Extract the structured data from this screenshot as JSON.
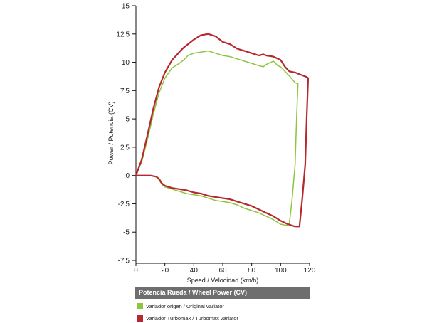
{
  "chart_data": {
    "type": "line",
    "title": "",
    "xlabel": "Speed / Velocidad (km/h)",
    "ylabel": "Power / Potencia (CV)",
    "xlim": [
      0,
      120
    ],
    "ylim": [
      -7.5,
      15
    ],
    "x_ticks": [
      "0",
      "20",
      "40",
      "60",
      "80",
      "100",
      "120"
    ],
    "y_ticks": [
      "15",
      "12'5",
      "10",
      "7'5",
      "5",
      "2'5",
      "0",
      "-2'5",
      "-5",
      "-7'5"
    ],
    "grid": false,
    "legend_title": "Potencia Rueda / Wheel Power (CV)",
    "series": [
      {
        "name": "Variador origen / Original variator",
        "color": "#8cc63f",
        "points": [
          [
            0,
            0
          ],
          [
            4,
            1.2
          ],
          [
            8,
            3.2
          ],
          [
            12,
            5.4
          ],
          [
            16,
            7.3
          ],
          [
            20,
            8.6
          ],
          [
            25,
            9.5
          ],
          [
            30,
            9.9
          ],
          [
            33,
            10.2
          ],
          [
            36,
            10.6
          ],
          [
            40,
            10.8
          ],
          [
            45,
            10.9
          ],
          [
            50,
            11.0
          ],
          [
            55,
            10.8
          ],
          [
            60,
            10.6
          ],
          [
            65,
            10.5
          ],
          [
            70,
            10.3
          ],
          [
            75,
            10.1
          ],
          [
            80,
            9.9
          ],
          [
            85,
            9.7
          ],
          [
            88,
            9.6
          ],
          [
            90,
            9.8
          ],
          [
            95,
            10.1
          ],
          [
            98,
            9.7
          ],
          [
            100,
            9.6
          ],
          [
            103,
            9.2
          ],
          [
            106,
            8.8
          ],
          [
            110,
            8.2
          ],
          [
            112,
            8.1
          ],
          [
            111,
            5
          ],
          [
            110,
            1
          ],
          [
            108,
            -2
          ],
          [
            106,
            -4.3
          ],
          [
            104,
            -4.4
          ],
          [
            100,
            -4.3
          ],
          [
            95,
            -3.9
          ],
          [
            90,
            -3.6
          ],
          [
            85,
            -3.3
          ],
          [
            80,
            -3.1
          ],
          [
            75,
            -2.9
          ],
          [
            70,
            -2.6
          ],
          [
            65,
            -2.4
          ],
          [
            60,
            -2.3
          ],
          [
            55,
            -2.2
          ],
          [
            50,
            -2.0
          ],
          [
            45,
            -1.8
          ],
          [
            40,
            -1.7
          ],
          [
            35,
            -1.6
          ],
          [
            30,
            -1.4
          ],
          [
            25,
            -1.2
          ],
          [
            20,
            -1.0
          ],
          [
            18,
            -0.8
          ],
          [
            16,
            -0.4
          ],
          [
            14,
            -0.1
          ],
          [
            10,
            0
          ],
          [
            5,
            0
          ],
          [
            0,
            0
          ]
        ]
      },
      {
        "name": "Variador Turbomax / Turbomax variator",
        "color": "#b7282e",
        "points": [
          [
            0,
            0
          ],
          [
            4,
            1.4
          ],
          [
            8,
            3.6
          ],
          [
            12,
            5.9
          ],
          [
            16,
            7.8
          ],
          [
            20,
            9.1
          ],
          [
            25,
            10.2
          ],
          [
            30,
            10.9
          ],
          [
            33,
            11.3
          ],
          [
            36,
            11.6
          ],
          [
            40,
            12.0
          ],
          [
            45,
            12.4
          ],
          [
            50,
            12.5
          ],
          [
            55,
            12.3
          ],
          [
            60,
            11.8
          ],
          [
            65,
            11.6
          ],
          [
            70,
            11.2
          ],
          [
            75,
            11.0
          ],
          [
            80,
            10.8
          ],
          [
            85,
            10.6
          ],
          [
            88,
            10.7
          ],
          [
            90,
            10.6
          ],
          [
            95,
            10.5
          ],
          [
            100,
            10.2
          ],
          [
            103,
            9.6
          ],
          [
            106,
            9.2
          ],
          [
            110,
            9.1
          ],
          [
            114,
            8.9
          ],
          [
            118,
            8.7
          ],
          [
            119,
            8.6
          ],
          [
            118,
            5
          ],
          [
            117,
            1
          ],
          [
            115,
            -2
          ],
          [
            113,
            -4.5
          ],
          [
            110,
            -4.5
          ],
          [
            105,
            -4.3
          ],
          [
            100,
            -4.0
          ],
          [
            95,
            -3.6
          ],
          [
            90,
            -3.3
          ],
          [
            85,
            -3.0
          ],
          [
            80,
            -2.7
          ],
          [
            75,
            -2.5
          ],
          [
            70,
            -2.3
          ],
          [
            65,
            -2.1
          ],
          [
            60,
            -2.0
          ],
          [
            55,
            -1.9
          ],
          [
            50,
            -1.8
          ],
          [
            45,
            -1.6
          ],
          [
            40,
            -1.5
          ],
          [
            35,
            -1.3
          ],
          [
            30,
            -1.2
          ],
          [
            25,
            -1.1
          ],
          [
            20,
            -0.9
          ],
          [
            18,
            -0.7
          ],
          [
            16,
            -0.3
          ],
          [
            14,
            -0.1
          ],
          [
            10,
            0
          ],
          [
            5,
            0
          ],
          [
            0,
            0
          ]
        ]
      }
    ]
  }
}
